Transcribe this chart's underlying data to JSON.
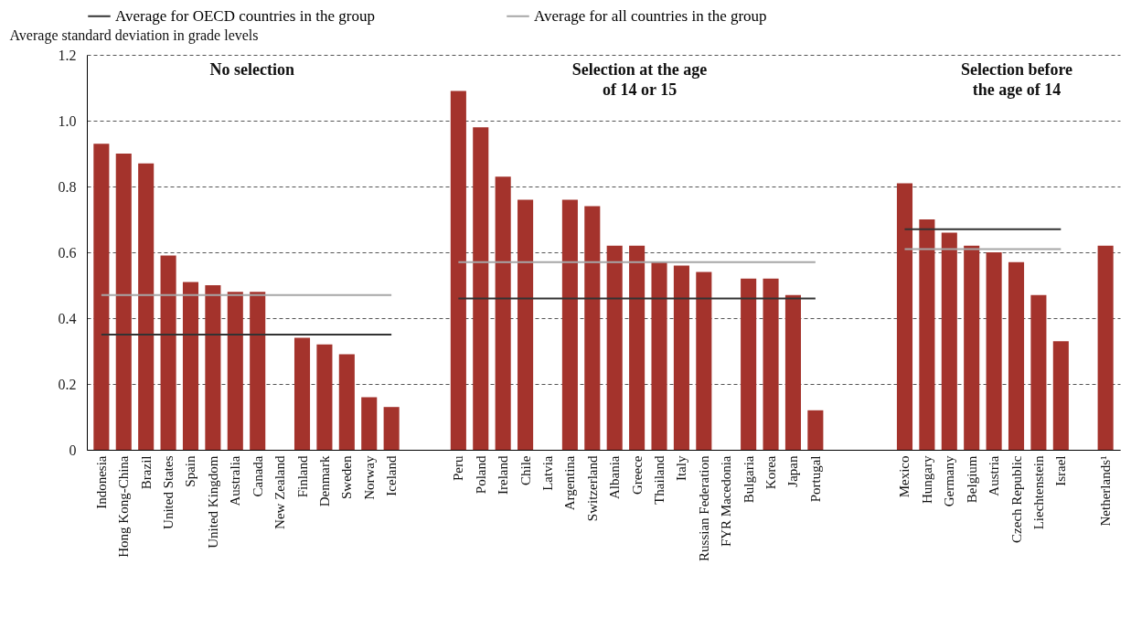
{
  "chart_data": {
    "type": "bar",
    "ylabel": "Average standard deviation in grade levels",
    "categories": [
      "Indonesia",
      "Hong Kong-China",
      "Brazil",
      "United States",
      "Spain",
      "United Kingdom",
      "Australia",
      "Canada",
      "New Zealand",
      "Finland",
      "Denmark",
      "Sweden",
      "Norway",
      "Iceland",
      null,
      null,
      "Peru",
      "Poland",
      "Ireland",
      "Chile",
      "Latvia",
      "Argentina",
      "Switzerland",
      "Albania",
      "Greece",
      "Thailand",
      "Italy",
      "Russian Federation",
      "FYR Macedonia",
      "Bulgaria",
      "Korea",
      "Japan",
      "Portugal",
      null,
      null,
      null,
      "Mexico",
      "Hungary",
      "Germany",
      "Belgium",
      "Austria",
      "Czech Republic",
      "Liechtenstein",
      "Israel",
      null,
      "Netherlands¹"
    ],
    "series": [
      {
        "color": "#a4332c",
        "values": [
          0.93,
          0.9,
          0.87,
          0.59,
          0.51,
          0.5,
          0.48,
          0.48,
          null,
          0.34,
          0.32,
          0.29,
          0.16,
          0.13,
          null,
          null,
          1.09,
          0.98,
          0.83,
          0.76,
          null,
          0.76,
          0.74,
          0.62,
          0.62,
          0.57,
          0.56,
          0.54,
          null,
          0.52,
          0.52,
          0.47,
          0.12,
          null,
          null,
          null,
          0.81,
          0.7,
          0.66,
          0.62,
          0.6,
          0.57,
          0.47,
          0.33,
          null,
          0.62
        ]
      },
      {
        "type": "line",
        "name": "Average for OECD countries in the group",
        "color": "#333333",
        "values": [
          0.35,
          0.35,
          0.35,
          0.35,
          0.35,
          0.35,
          0.35,
          0.35,
          0.35,
          0.35,
          0.35,
          0.35,
          0.35,
          0.35,
          null,
          null,
          0.46,
          0.46,
          0.46,
          0.46,
          0.46,
          0.46,
          0.46,
          0.46,
          0.46,
          0.46,
          0.46,
          0.46,
          0.46,
          0.46,
          0.46,
          0.46,
          0.46,
          null,
          null,
          null,
          0.67,
          0.67,
          0.67,
          0.67,
          0.67,
          0.67,
          0.67,
          0.67,
          null,
          null
        ]
      },
      {
        "type": "line",
        "name": "Average for all countries in the group",
        "color": "#a6a6a6",
        "values": [
          0.47,
          0.47,
          0.47,
          0.47,
          0.47,
          0.47,
          0.47,
          0.47,
          0.47,
          0.47,
          0.47,
          0.47,
          0.47,
          0.47,
          null,
          null,
          0.57,
          0.57,
          0.57,
          0.57,
          0.57,
          0.57,
          0.57,
          0.57,
          0.57,
          0.57,
          0.57,
          0.57,
          0.57,
          0.57,
          0.57,
          0.57,
          0.57,
          null,
          null,
          null,
          0.61,
          0.61,
          0.61,
          0.61,
          0.61,
          0.61,
          0.61,
          0.61,
          null,
          null
        ]
      }
    ],
    "ylim": [
      0,
      1.2
    ],
    "yticks": [
      0,
      0.2,
      0.4,
      0.6,
      0.8,
      {
        "value": 1,
        "label": "1.0"
      },
      1.2
    ],
    "annotations": [
      "No selection",
      "Selection at the age\nof 14 or 15",
      "Selection before\nthe age of 14"
    ],
    "grid": "y",
    "legend": "top"
  }
}
